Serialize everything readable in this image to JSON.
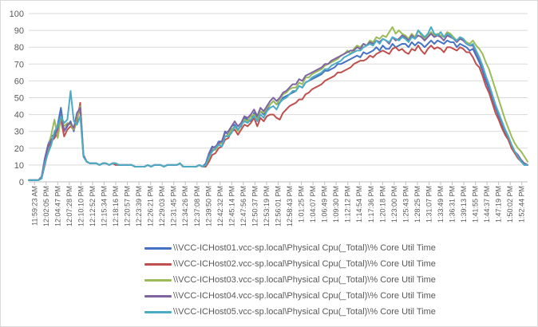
{
  "chart_data": {
    "type": "line",
    "title": "",
    "xlabel": "",
    "ylabel": "",
    "ylim": [
      0,
      100
    ],
    "y_ticks": [
      0,
      10,
      20,
      30,
      40,
      50,
      60,
      70,
      80,
      90,
      100
    ],
    "grid": "horizontal",
    "legend_position": "bottom",
    "x_tick_labels": [
      "11:59:23 AM",
      "12:02:05 PM",
      "12:04:47 PM",
      "12:07:28 PM",
      "12:10:10 PM",
      "12:12:52 PM",
      "12:15:34 PM",
      "12:18:16 PM",
      "12:20:57 PM",
      "12:23:39 PM",
      "12:26:21 PM",
      "12:29:03 PM",
      "12:31:45 PM",
      "12:34:26 PM",
      "12:37:08 PM",
      "12:39:50 PM",
      "12:42:32 PM",
      "12:45:14 PM",
      "12:47:56 PM",
      "12:50:37 PM",
      "12:53:19 PM",
      "12:56:01 PM",
      "12:58:43 PM",
      "1:01:25 PM",
      "1:04:07 PM",
      "1:06:49 PM",
      "1:09:30 PM",
      "1:12:12 PM",
      "1:14:54 PM",
      "1:17:36 PM",
      "1:20:18 PM",
      "1:23:00 PM",
      "1:25:43 PM",
      "1:28:25 PM",
      "1:31:07 PM",
      "1:33:49 PM",
      "1:36:31 PM",
      "1:39:13 PM",
      "1:41:55 PM",
      "1:44:37 PM",
      "1:47:19 PM",
      "1:50:02 PM",
      "1:52:44 PM"
    ],
    "series": [
      {
        "name": "\\\\VCC-ICHost01.vcc-sp.local\\Physical Cpu(_Total)\\% Core Util Time",
        "color": "#4472C4",
        "values": [
          1,
          1,
          1,
          1,
          3,
          14,
          22,
          27,
          28,
          34,
          44,
          30,
          33,
          36,
          30,
          40,
          42,
          15,
          12,
          11,
          11,
          11,
          10,
          11,
          11,
          10,
          11,
          11,
          10,
          10,
          10,
          10,
          10,
          9,
          9,
          9,
          9,
          10,
          9,
          10,
          10,
          10,
          9,
          10,
          10,
          10,
          10,
          11,
          9,
          9,
          9,
          9,
          9,
          10,
          9,
          11,
          17,
          21,
          20,
          24,
          24,
          30,
          28,
          33,
          34,
          31,
          33,
          38,
          37,
          36,
          41,
          38,
          42,
          40,
          43,
          46,
          48,
          46,
          47,
          50,
          51,
          52,
          53,
          54,
          57,
          56,
          59,
          60,
          61,
          62,
          63,
          64,
          66,
          66,
          67,
          68,
          70,
          70,
          71,
          72,
          73,
          74,
          75,
          74,
          77,
          76,
          77,
          78,
          80,
          78,
          81,
          79,
          79,
          82,
          80,
          81,
          82,
          82,
          80,
          83,
          81,
          83,
          82,
          80,
          82,
          84,
          82,
          84,
          83,
          82,
          84,
          83,
          83,
          80,
          82,
          81,
          80,
          78,
          79,
          75,
          71,
          66,
          60,
          55,
          49,
          44,
          39,
          34,
          30,
          26,
          21,
          17,
          15,
          12,
          10,
          10
        ]
      },
      {
        "name": "\\\\VCC-ICHost02.vcc-sp.local\\Physical Cpu(_Total)\\% Core Util Time",
        "color": "#C0504D",
        "values": [
          1,
          1,
          1,
          1,
          2,
          10,
          18,
          24,
          26,
          29,
          37,
          27,
          31,
          33,
          31,
          36,
          47,
          15,
          12,
          11,
          11,
          11,
          10,
          11,
          11,
          10,
          11,
          10,
          10,
          10,
          10,
          10,
          10,
          9,
          9,
          9,
          9,
          10,
          9,
          10,
          10,
          10,
          9,
          10,
          10,
          10,
          10,
          11,
          9,
          9,
          9,
          9,
          9,
          10,
          9,
          9,
          12,
          16,
          17,
          20,
          21,
          25,
          26,
          30,
          31,
          28,
          31,
          34,
          33,
          35,
          38,
          33,
          38,
          36,
          39,
          40,
          40,
          38,
          37,
          41,
          43,
          45,
          46,
          47,
          49,
          49,
          52,
          53,
          55,
          56,
          57,
          58,
          60,
          61,
          62,
          63,
          65,
          65,
          66,
          67,
          68,
          70,
          71,
          72,
          72,
          73,
          75,
          74,
          76,
          77,
          78,
          77,
          76,
          79,
          80,
          78,
          79,
          77,
          76,
          79,
          78,
          81,
          78,
          76,
          79,
          81,
          79,
          80,
          79,
          77,
          80,
          80,
          79,
          78,
          80,
          79,
          77,
          77,
          74,
          70,
          68,
          63,
          57,
          53,
          47,
          41,
          37,
          32,
          28,
          25,
          20,
          17,
          14,
          12,
          11,
          10
        ]
      },
      {
        "name": "\\\\VCC-ICHost03.vcc-sp.local\\Physical Cpu(_Total)\\% Core Util Time",
        "color": "#9BBB59",
        "values": [
          1,
          1,
          1,
          1,
          3,
          12,
          20,
          28,
          37,
          26,
          38,
          33,
          35,
          34,
          31,
          38,
          45,
          16,
          12,
          11,
          11,
          11,
          10,
          11,
          11,
          10,
          11,
          11,
          10,
          10,
          10,
          10,
          10,
          9,
          9,
          9,
          9,
          10,
          9,
          10,
          10,
          10,
          9,
          10,
          10,
          10,
          10,
          11,
          9,
          9,
          9,
          9,
          9,
          10,
          9,
          10,
          14,
          19,
          19,
          22,
          23,
          27,
          28,
          31,
          33,
          30,
          34,
          37,
          36,
          39,
          40,
          37,
          42,
          41,
          44,
          46,
          48,
          46,
          49,
          52,
          53,
          55,
          56,
          56,
          59,
          58,
          62,
          62,
          64,
          65,
          66,
          67,
          69,
          70,
          71,
          72,
          73,
          75,
          76,
          78,
          76,
          79,
          81,
          80,
          82,
          81,
          84,
          83,
          86,
          85,
          87,
          86,
          89,
          92,
          88,
          90,
          88,
          87,
          85,
          88,
          86,
          90,
          87,
          85,
          87,
          89,
          87,
          88,
          87,
          86,
          89,
          88,
          86,
          84,
          86,
          85,
          83,
          82,
          84,
          81,
          79,
          76,
          71,
          67,
          61,
          55,
          49,
          43,
          37,
          32,
          27,
          23,
          20,
          18,
          15,
          12
        ]
      },
      {
        "name": "\\\\VCC-ICHost04.vcc-sp.local\\Physical Cpu(_Total)\\% Core Util Time",
        "color": "#8064A2",
        "values": [
          1,
          1,
          1,
          1,
          3,
          13,
          21,
          25,
          27,
          32,
          40,
          30,
          34,
          35,
          32,
          41,
          44,
          16,
          12,
          11,
          11,
          11,
          10,
          11,
          11,
          10,
          11,
          11,
          10,
          10,
          10,
          10,
          10,
          9,
          9,
          9,
          9,
          10,
          9,
          10,
          10,
          10,
          9,
          10,
          10,
          10,
          10,
          11,
          9,
          9,
          9,
          9,
          9,
          10,
          9,
          10,
          16,
          20,
          21,
          23,
          24,
          29,
          30,
          33,
          36,
          33,
          35,
          39,
          38,
          40,
          43,
          39,
          44,
          42,
          45,
          48,
          50,
          48,
          50,
          53,
          54,
          56,
          58,
          58,
          61,
          60,
          63,
          64,
          65,
          66,
          67,
          68,
          70,
          70,
          72,
          73,
          74,
          75,
          76,
          77,
          78,
          78,
          80,
          79,
          82,
          81,
          83,
          82,
          84,
          83,
          85,
          84,
          82,
          86,
          84,
          85,
          87,
          86,
          84,
          87,
          85,
          87,
          86,
          84,
          86,
          88,
          86,
          87,
          86,
          84,
          87,
          86,
          85,
          83,
          85,
          84,
          82,
          81,
          81,
          77,
          73,
          68,
          62,
          57,
          51,
          45,
          40,
          35,
          31,
          27,
          22,
          18,
          16,
          13,
          11,
          10
        ]
      },
      {
        "name": "\\\\VCC-ICHost05.vcc-sp.local\\Physical Cpu(_Total)\\% Core Util Time",
        "color": "#4BACC6",
        "values": [
          1,
          1,
          1,
          1,
          2,
          11,
          17,
          22,
          30,
          33,
          39,
          35,
          37,
          54,
          36,
          34,
          39,
          15,
          12,
          11,
          11,
          11,
          10,
          11,
          11,
          10,
          11,
          11,
          10,
          10,
          10,
          10,
          10,
          9,
          9,
          9,
          9,
          10,
          9,
          10,
          10,
          10,
          9,
          10,
          10,
          10,
          10,
          11,
          9,
          9,
          9,
          9,
          9,
          10,
          9,
          10,
          15,
          18,
          20,
          22,
          21,
          27,
          27,
          29,
          33,
          31,
          34,
          36,
          35,
          37,
          39,
          36,
          40,
          38,
          42,
          44,
          45,
          43,
          47,
          49,
          50,
          52,
          54,
          54,
          57,
          56,
          59,
          60,
          62,
          63,
          64,
          65,
          67,
          67,
          69,
          70,
          71,
          72,
          74,
          75,
          76,
          77,
          78,
          78,
          80,
          81,
          82,
          81,
          84,
          82,
          85,
          84,
          83,
          86,
          85,
          84,
          86,
          85,
          83,
          86,
          85,
          90,
          88,
          86,
          88,
          92,
          88,
          87,
          89,
          86,
          88,
          87,
          85,
          84,
          86,
          85,
          82,
          81,
          82,
          78,
          74,
          69,
          63,
          58,
          52,
          46,
          41,
          36,
          31,
          27,
          22,
          18,
          15,
          12,
          10,
          10
        ]
      }
    ]
  }
}
